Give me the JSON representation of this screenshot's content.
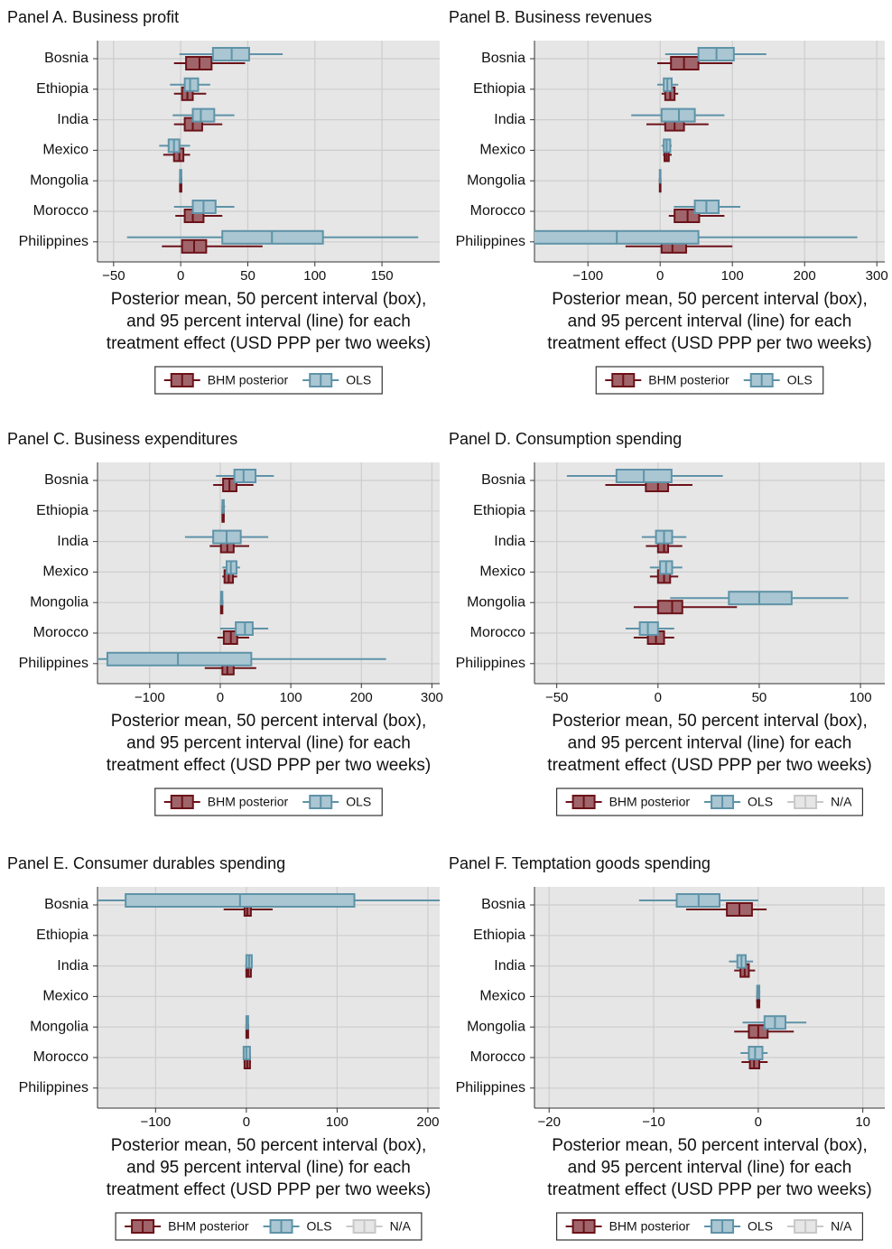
{
  "chart_data": [
    {
      "type": "interval",
      "title": "Panel A. Business profit",
      "xlabel": [
        "Posterior mean, 50 percent interval (box),",
        "and 95 percent interval (line) for each",
        "treatment effect (USD PPP per two weeks)"
      ],
      "categories": [
        "Bosnia",
        "Ethiopia",
        "India",
        "Mexico",
        "Mongolia",
        "Morocco",
        "Philippines"
      ],
      "xlim": [
        -62,
        193
      ],
      "xticks": [
        {
          "value": -50,
          "label": "−50"
        },
        0,
        50,
        100,
        150
      ],
      "grid": true,
      "series": [
        {
          "name": "BHM posterior",
          "color": "#6b1219",
          "fill": "#a0656a",
          "mean": [
            14,
            5,
            9,
            -1,
            0,
            9,
            10
          ],
          "lo50": [
            4,
            1,
            3,
            -5,
            -0.5,
            3,
            1
          ],
          "hi50": [
            23,
            9,
            16,
            2,
            0.5,
            17,
            19
          ],
          "lo95": [
            -5,
            -5,
            -5,
            -13,
            -1,
            -4,
            -14
          ],
          "hi95": [
            48,
            19,
            31,
            7,
            1,
            31,
            61
          ]
        },
        {
          "name": "OLS",
          "color": "#5f93a8",
          "fill": "#a9c6d2",
          "mean": [
            38,
            7,
            15,
            -5,
            0,
            17,
            68
          ],
          "lo50": [
            24,
            3,
            9,
            -9,
            -0.5,
            9,
            31
          ],
          "hi50": [
            51,
            13,
            25,
            -1,
            0.5,
            26,
            106
          ],
          "lo95": [
            -1,
            -8,
            -6,
            -16,
            -1,
            -5,
            -40
          ],
          "hi95": [
            76,
            22,
            40,
            7,
            1,
            40,
            177
          ]
        }
      ]
    },
    {
      "type": "interval",
      "title": "Panel B. Business revenues",
      "xlabel": [
        "Posterior mean, 50 percent interval (box),",
        "and 95 percent interval (line) for each",
        "treatment effect (USD PPP per two weeks)"
      ],
      "categories": [
        "Bosnia",
        "Ethiopia",
        "India",
        "Mexico",
        "Mongolia",
        "Morocco",
        "Philippines"
      ],
      "xlim": [
        -174,
        311
      ],
      "xticks": [
        {
          "value": -100,
          "label": "−100"
        },
        0,
        100,
        200,
        300
      ],
      "grid": true,
      "series": [
        {
          "name": "BHM posterior",
          "color": "#6b1219",
          "fill": "#a0656a",
          "mean": [
            33,
            14,
            20,
            9,
            0,
            38,
            17
          ],
          "lo50": [
            15,
            7,
            7,
            6,
            -0.5,
            20,
            2
          ],
          "hi50": [
            53,
            20,
            33,
            12,
            0.5,
            54,
            36
          ],
          "lo95": [
            -4,
            2,
            -19,
            4,
            -1,
            12,
            -48
          ],
          "hi95": [
            100,
            25,
            67,
            16,
            1,
            89,
            100
          ]
        },
        {
          "name": "OLS",
          "color": "#5f93a8",
          "fill": "#a9c6d2",
          "mean": [
            78,
            10,
            26,
            9,
            0,
            64,
            -60
          ],
          "lo50": [
            53,
            5,
            2,
            5,
            -0.5,
            48,
            -180
          ],
          "hi50": [
            102,
            16,
            48,
            14,
            0.5,
            81,
            53
          ],
          "lo95": [
            7,
            -4,
            -40,
            2,
            -1,
            19,
            -300
          ],
          "hi95": [
            147,
            25,
            89,
            16,
            1,
            111,
            273
          ]
        }
      ]
    },
    {
      "type": "interval",
      "title": "Panel C. Business expenditures",
      "xlabel": [
        "Posterior mean, 50 percent interval (box),",
        "and 95 percent interval (line) for each",
        "treatment effect (USD PPP per two weeks)"
      ],
      "categories": [
        "Bosnia",
        "Ethiopia",
        "India",
        "Mexico",
        "Mongolia",
        "Morocco",
        "Philippines"
      ],
      "xlim": [
        -174,
        311
      ],
      "xticks": [
        {
          "value": -100,
          "label": "−100"
        },
        0,
        100,
        200,
        300
      ],
      "grid": true,
      "series": [
        {
          "name": "BHM posterior",
          "color": "#6b1219",
          "fill": "#a0656a",
          "mean": [
            13,
            4,
            10,
            12,
            2,
            15,
            10
          ],
          "lo50": [
            4,
            3,
            1,
            6,
            1,
            5,
            3
          ],
          "hi50": [
            23,
            5,
            19,
            18,
            3,
            24,
            19
          ],
          "lo95": [
            -10,
            2,
            -15,
            3,
            0,
            -4,
            -22
          ],
          "hi95": [
            47,
            6,
            41,
            24,
            4,
            41,
            51
          ]
        },
        {
          "name": "OLS",
          "color": "#5f93a8",
          "fill": "#a9c6d2",
          "mean": [
            33,
            4,
            9,
            15,
            2,
            35,
            -60
          ],
          "lo50": [
            20,
            3,
            -10,
            9,
            1,
            22,
            -160
          ],
          "hi50": [
            50,
            5,
            29,
            23,
            3,
            46,
            44
          ],
          "lo95": [
            -6,
            1.5,
            -50,
            3,
            0,
            0,
            -250
          ],
          "hi95": [
            76,
            7,
            68,
            28,
            4,
            68,
            235
          ]
        }
      ]
    },
    {
      "type": "interval",
      "title": "Panel D. Consumption spending",
      "xlabel": [
        "Posterior mean, 50 percent interval (box),",
        "and 95 percent interval (line) for each",
        "treatment effect (USD PPP per two weeks)"
      ],
      "categories": [
        "Bosnia",
        "Ethiopia",
        "India",
        "Mexico",
        "Mongolia",
        "Morocco",
        "Philippines"
      ],
      "xlim": [
        -61,
        112
      ],
      "xticks": [
        {
          "value": -50,
          "label": "−50"
        },
        0,
        50,
        100
      ],
      "grid": true,
      "na_legend": "N/A",
      "series": [
        {
          "name": "BHM posterior",
          "color": "#6b1219",
          "fill": "#a0656a",
          "mean": [
            0,
            null,
            3,
            3,
            7,
            -1,
            null
          ],
          "lo50": [
            -6,
            null,
            0,
            0,
            0,
            -5,
            null
          ],
          "hi50": [
            5,
            null,
            5,
            6,
            12,
            3,
            null
          ],
          "lo95": [
            -26,
            null,
            -6,
            -4,
            -12,
            -12,
            null
          ],
          "hi95": [
            17,
            null,
            12,
            10,
            39,
            8,
            null
          ]
        },
        {
          "name": "OLS",
          "color": "#5f93a8",
          "fill": "#a9c6d2",
          "mean": [
            -7,
            null,
            3,
            4,
            50,
            -5,
            null
          ],
          "lo50": [
            -20.5,
            null,
            -1,
            1,
            35,
            -9,
            null
          ],
          "hi50": [
            6.7,
            null,
            7,
            7,
            66,
            0,
            null
          ],
          "lo95": [
            -45,
            null,
            -8,
            -4,
            6,
            -16,
            null
          ],
          "hi95": [
            32,
            null,
            14,
            12,
            94,
            8,
            null
          ]
        }
      ]
    },
    {
      "type": "interval",
      "title": "Panel E. Consumer durables spending",
      "xlabel": [
        "Posterior mean, 50 percent interval (box),",
        "and 95 percent interval (line) for each",
        "treatment effect (USD PPP per two weeks)"
      ],
      "categories": [
        "Bosnia",
        "Ethiopia",
        "India",
        "Mexico",
        "Mongolia",
        "Morocco",
        "Philippines"
      ],
      "xlim": [
        -164,
        213
      ],
      "xticks": [
        {
          "value": -100,
          "label": "−100"
        },
        0,
        100,
        200
      ],
      "grid": true,
      "na_legend": "N/A",
      "series": [
        {
          "name": "BHM posterior",
          "color": "#6b1219",
          "fill": "#a0656a",
          "mean": [
            1,
            null,
            2,
            null,
            1,
            1,
            null
          ],
          "lo50": [
            -2,
            null,
            0,
            null,
            0,
            -2,
            null
          ],
          "hi50": [
            5,
            null,
            5,
            null,
            2,
            4,
            null
          ],
          "lo95": [
            -25,
            null,
            -1,
            null,
            -0.5,
            -3,
            null
          ],
          "hi95": [
            29,
            null,
            6,
            null,
            2.5,
            5,
            null
          ]
        },
        {
          "name": "OLS",
          "color": "#5f93a8",
          "fill": "#a9c6d2",
          "mean": [
            -7,
            null,
            3,
            null,
            1,
            0,
            null
          ],
          "lo50": [
            -133,
            null,
            0,
            null,
            0,
            -3,
            null
          ],
          "hi50": [
            119,
            null,
            6,
            null,
            2,
            4,
            null
          ],
          "lo95": [
            -250,
            null,
            -1,
            null,
            -0.5,
            -4,
            null
          ],
          "hi95": [
            300,
            null,
            7,
            null,
            2.5,
            5,
            null
          ]
        }
      ]
    },
    {
      "type": "interval",
      "title": "Panel F. Temptation goods spending",
      "xlabel": [
        "Posterior mean, 50 percent interval (box),",
        "and 95 percent interval (line) for each",
        "treatment effect (USD PPP per two weeks)"
      ],
      "categories": [
        "Bosnia",
        "Ethiopia",
        "India",
        "Mexico",
        "Mongolia",
        "Morocco",
        "Philippines"
      ],
      "xlim": [
        -21.4,
        12.1
      ],
      "xticks": [
        {
          "value": -20,
          "label": "−20"
        },
        {
          "value": -10,
          "label": "−10"
        },
        0,
        10
      ],
      "grid": true,
      "na_legend": "N/A",
      "series": [
        {
          "name": "BHM posterior",
          "color": "#6b1219",
          "fill": "#a0656a",
          "mean": [
            -1.8,
            null,
            -1.3,
            0,
            0,
            -0.4,
            null
          ],
          "lo50": [
            -3,
            null,
            -1.7,
            -0.1,
            -0.9,
            -0.8,
            null
          ],
          "hi50": [
            -0.6,
            null,
            -0.9,
            0.1,
            0.9,
            0.1,
            null
          ],
          "lo95": [
            -6.9,
            null,
            -2.3,
            -0.2,
            -2.3,
            -1.6,
            null
          ],
          "hi95": [
            0.8,
            null,
            -0.3,
            0.2,
            3.4,
            0.9,
            null
          ]
        },
        {
          "name": "OLS",
          "color": "#5f93a8",
          "fill": "#a9c6d2",
          "mean": [
            -5.7,
            null,
            -1.6,
            0,
            1.6,
            -0.3,
            null
          ],
          "lo50": [
            -7.8,
            null,
            -2,
            -0.1,
            0.6,
            -0.9,
            null
          ],
          "hi50": [
            -3.7,
            null,
            -1.2,
            0.1,
            2.6,
            0.4,
            null
          ],
          "lo95": [
            -11.4,
            null,
            -2.8,
            -0.2,
            -1.5,
            -1.7,
            null
          ],
          "hi95": [
            0,
            null,
            -0.5,
            0.2,
            4.6,
            0.9,
            null
          ]
        }
      ]
    }
  ]
}
